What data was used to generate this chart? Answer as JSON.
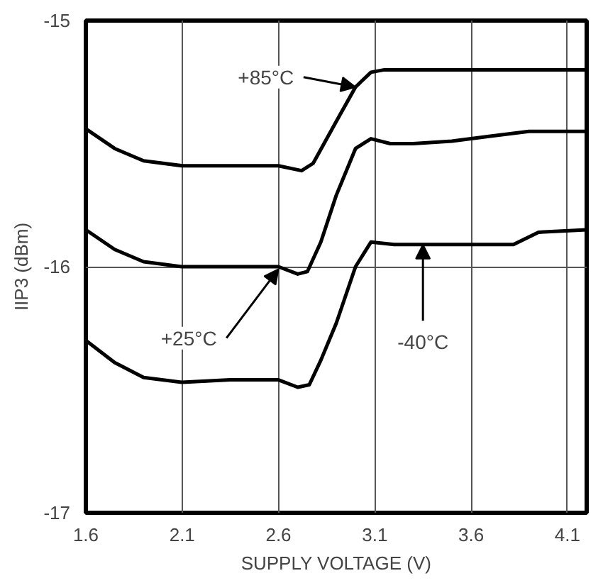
{
  "chart_data": {
    "type": "line",
    "xlabel": "SUPPLY VOLTAGE (V)",
    "ylabel": "IIP3 (dBm)",
    "xlim": [
      1.6,
      4.2
    ],
    "ylim": [
      -17,
      -15
    ],
    "xticks": [
      1.6,
      2.1,
      2.6,
      3.1,
      3.6,
      4.1
    ],
    "yticks": [
      -17,
      -16,
      -15
    ],
    "grid": true,
    "line_style": "solid",
    "marker": "none",
    "series": [
      {
        "color": "#000000",
        "x": [
          1.6,
          1.75,
          1.9,
          2.1,
          2.35,
          2.6,
          2.72,
          2.78,
          2.9,
          3.0,
          3.08,
          3.15,
          3.4,
          3.7,
          4.0,
          4.2
        ],
        "values": [
          -15.44,
          -15.52,
          -15.57,
          -15.59,
          -15.59,
          -15.59,
          -15.61,
          -15.58,
          -15.41,
          -15.27,
          -15.21,
          -15.2,
          -15.2,
          -15.2,
          -15.2,
          -15.2
        ]
      },
      {
        "color": "#000000",
        "x": [
          1.6,
          1.75,
          1.9,
          2.1,
          2.35,
          2.6,
          2.7,
          2.75,
          2.82,
          2.9,
          3.0,
          3.08,
          3.18,
          3.3,
          3.5,
          3.7,
          3.9,
          4.2
        ],
        "values": [
          -15.85,
          -15.93,
          -15.98,
          -16.0,
          -16.0,
          -16.0,
          -16.03,
          -16.02,
          -15.9,
          -15.71,
          -15.52,
          -15.48,
          -15.5,
          -15.5,
          -15.49,
          -15.47,
          -15.45,
          -15.45
        ]
      },
      {
        "color": "#000000",
        "x": [
          1.6,
          1.75,
          1.9,
          2.1,
          2.35,
          2.6,
          2.7,
          2.76,
          2.82,
          2.9,
          3.0,
          3.08,
          3.2,
          3.4,
          3.6,
          3.82,
          3.95,
          4.2
        ],
        "values": [
          -16.3,
          -16.39,
          -16.45,
          -16.47,
          -16.46,
          -16.46,
          -16.49,
          -16.48,
          -16.38,
          -16.23,
          -16.0,
          -15.9,
          -15.91,
          -15.91,
          -15.91,
          -15.91,
          -15.86,
          -15.85
        ]
      }
    ],
    "annotations": [
      {
        "text": "+85°C",
        "x": 3.0,
        "y": -15.27
      },
      {
        "text": "+25°C",
        "x": 2.6,
        "y": -16.01
      },
      {
        "text": "-40°C",
        "x": 3.35,
        "y": -15.91
      }
    ]
  }
}
